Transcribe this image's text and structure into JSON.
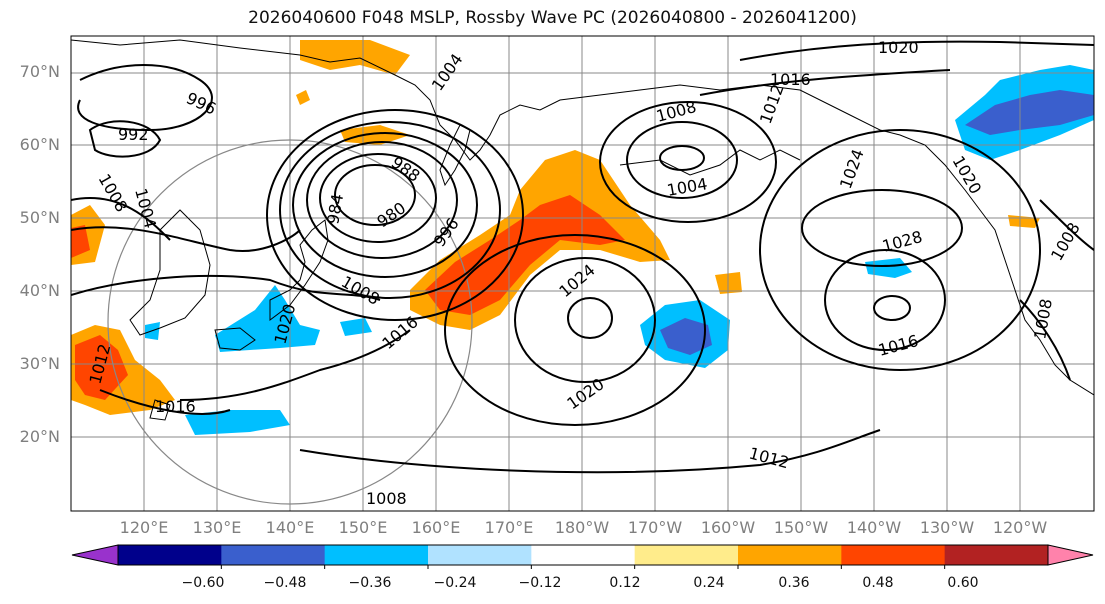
{
  "title": "2026040600 F048 MSLP, Rossby Wave PC (2026040800 - 2026041200)",
  "lat_labels": [
    "70°N",
    "60°N",
    "50°N",
    "40°N",
    "30°N",
    "20°N"
  ],
  "lon_labels": [
    "120°E",
    "130°E",
    "140°E",
    "150°E",
    "160°E",
    "170°E",
    "180°W",
    "170°W",
    "160°W",
    "150°W",
    "140°W",
    "130°W",
    "120°W"
  ],
  "isobar_labels": [
    "1020",
    "1016",
    "1004",
    "996",
    "992",
    "1008",
    "1008",
    "1004",
    "1012",
    "984",
    "988",
    "980",
    "996",
    "1008",
    "1016",
    "1020",
    "1012",
    "1016",
    "1024",
    "1020",
    "1004",
    "1008",
    "1024",
    "1020",
    "1028",
    "1016",
    "1012",
    "1008",
    "1008"
  ],
  "colorbar": {
    "ticks": [
      "−0.60",
      "−0.48",
      "−0.36",
      "−0.24",
      "−0.12",
      "0.12",
      "0.24",
      "0.36",
      "0.48",
      "0.60"
    ],
    "colors": [
      "#9932cc",
      "#00008b",
      "#3a5fcd",
      "#00bfff",
      "#b0e2ff",
      "#ffffff",
      "#ffec8b",
      "#ffa500",
      "#ff4500",
      "#b22222",
      "#ff82ab"
    ]
  },
  "colors": {
    "neg_strong": "#3a5fcd",
    "neg_mid": "#00bfff",
    "neg_light": "#b0e2ff",
    "pos_light": "#ffec8b",
    "pos_mid": "#ffa500",
    "pos_strong": "#ff4500"
  }
}
